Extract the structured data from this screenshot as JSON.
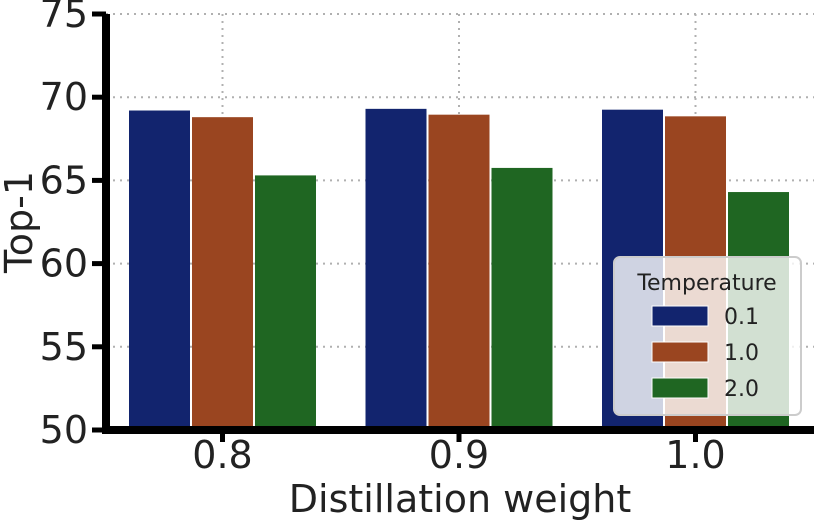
{
  "chart_data": {
    "type": "bar",
    "categories": [
      "0.8",
      "0.9",
      "1.0"
    ],
    "series": [
      {
        "name": "0.1",
        "values": [
          69.2,
          69.3,
          69.25
        ]
      },
      {
        "name": "1.0",
        "values": [
          68.8,
          68.95,
          68.85
        ]
      },
      {
        "name": "2.0",
        "values": [
          65.3,
          65.75,
          64.3
        ]
      }
    ],
    "xlabel": "Distillation weight",
    "ylabel": "Top-1",
    "ylim": [
      50,
      75
    ],
    "yticks": [
      50,
      55,
      60,
      65,
      70,
      75
    ],
    "ytick_labels": [
      "50",
      "55",
      "60",
      "65",
      "70",
      "75"
    ],
    "grid": true,
    "legend": {
      "title": "Temperature",
      "position": "lower-right"
    },
    "colors": [
      "#12246e",
      "#9a4520",
      "#1f6622"
    ]
  }
}
